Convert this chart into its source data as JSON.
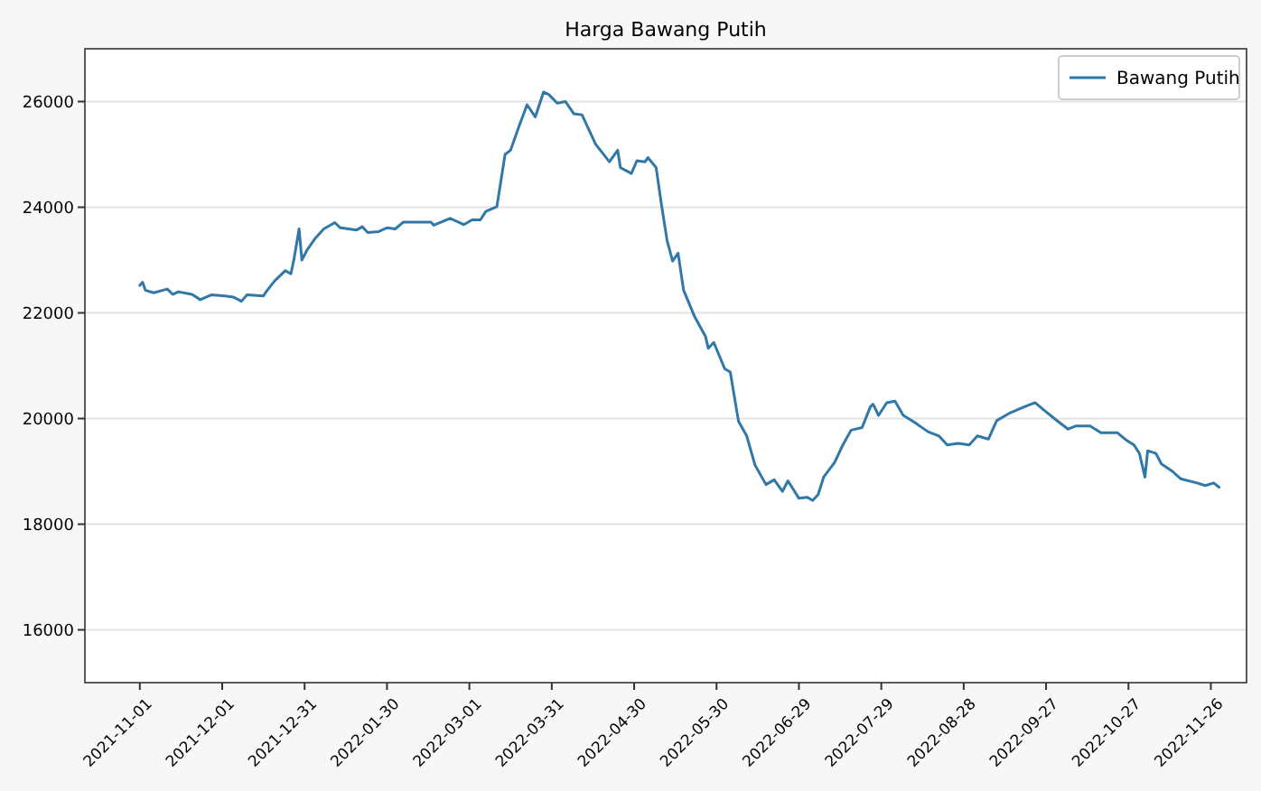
{
  "chart_data": {
    "type": "line",
    "title": "Harga Bawang Putih",
    "x": [
      "2021-11-01",
      "2021-11-02",
      "2021-11-03",
      "2021-11-06",
      "2021-11-11",
      "2021-11-13",
      "2021-11-15",
      "2021-11-20",
      "2021-11-23",
      "2021-11-27",
      "2021-12-02",
      "2021-12-05",
      "2021-12-08",
      "2021-12-10",
      "2021-12-16",
      "2021-12-17",
      "2021-12-20",
      "2021-12-24",
      "2021-12-26",
      "2021-12-27",
      "2021-12-29",
      "2021-12-30",
      "2022-01-01",
      "2022-01-04",
      "2022-01-07",
      "2022-01-11",
      "2022-01-13",
      "2022-01-19",
      "2022-01-21",
      "2022-01-23",
      "2022-01-27",
      "2022-01-30",
      "2022-02-02",
      "2022-02-05",
      "2022-02-11",
      "2022-02-15",
      "2022-02-16",
      "2022-02-22",
      "2022-02-27",
      "2022-03-02",
      "2022-03-05",
      "2022-03-07",
      "2022-03-11",
      "2022-03-14",
      "2022-03-16",
      "2022-03-19",
      "2022-03-22",
      "2022-03-25",
      "2022-03-28",
      "2022-03-30",
      "2022-04-02",
      "2022-04-05",
      "2022-04-08",
      "2022-04-11",
      "2022-04-16",
      "2022-04-21",
      "2022-04-24",
      "2022-04-25",
      "2022-04-29",
      "2022-05-01",
      "2022-05-04",
      "2022-05-05",
      "2022-05-08",
      "2022-05-10",
      "2022-05-12",
      "2022-05-14",
      "2022-05-16",
      "2022-05-18",
      "2022-05-22",
      "2022-05-26",
      "2022-05-27",
      "2022-05-29",
      "2022-06-02",
      "2022-06-04",
      "2022-06-07",
      "2022-06-10",
      "2022-06-13",
      "2022-06-17",
      "2022-06-20",
      "2022-06-23",
      "2022-06-25",
      "2022-06-29",
      "2022-07-02",
      "2022-07-04",
      "2022-07-06",
      "2022-07-08",
      "2022-07-12",
      "2022-07-15",
      "2022-07-18",
      "2022-07-22",
      "2022-07-25",
      "2022-07-26",
      "2022-07-28",
      "2022-07-31",
      "2022-08-03",
      "2022-08-06",
      "2022-08-10",
      "2022-08-15",
      "2022-08-19",
      "2022-08-22",
      "2022-08-26",
      "2022-08-30",
      "2022-09-02",
      "2022-09-06",
      "2022-09-09",
      "2022-09-14",
      "2022-09-19",
      "2022-09-23",
      "2022-09-26",
      "2022-09-30",
      "2022-10-05",
      "2022-10-08",
      "2022-10-13",
      "2022-10-17",
      "2022-10-23",
      "2022-10-26",
      "2022-10-29",
      "2022-10-31",
      "2022-11-02",
      "2022-11-03",
      "2022-11-06",
      "2022-11-08",
      "2022-11-12",
      "2022-11-15",
      "2022-11-21",
      "2022-11-24",
      "2022-11-27",
      "2022-11-29"
    ],
    "series": [
      {
        "name": "Bawang Putih",
        "color": "#2f78a8",
        "values": [
          22520,
          22580,
          22430,
          22380,
          22450,
          22350,
          22400,
          22350,
          22250,
          22340,
          22320,
          22300,
          22220,
          22340,
          22320,
          22400,
          22600,
          22800,
          22740,
          22980,
          23590,
          23000,
          23200,
          23420,
          23590,
          23710,
          23610,
          23570,
          23630,
          23520,
          23540,
          23610,
          23590,
          23720,
          23720,
          23720,
          23660,
          23790,
          23670,
          23760,
          23760,
          23920,
          24010,
          25000,
          25080,
          25520,
          25940,
          25710,
          26180,
          26130,
          25970,
          26000,
          25770,
          25750,
          25190,
          24860,
          25080,
          24750,
          24640,
          24880,
          24860,
          24940,
          24750,
          24030,
          23370,
          22980,
          23130,
          22430,
          21930,
          21550,
          21330,
          21440,
          20940,
          20880,
          19950,
          19670,
          19120,
          18750,
          18840,
          18620,
          18820,
          18490,
          18510,
          18450,
          18560,
          18890,
          19170,
          19500,
          19780,
          19830,
          20220,
          20270,
          20060,
          20300,
          20330,
          20060,
          19930,
          19750,
          19670,
          19500,
          19530,
          19500,
          19670,
          19610,
          19960,
          20110,
          20220,
          20300,
          20170,
          20000,
          19800,
          19860,
          19860,
          19730,
          19730,
          19600,
          19500,
          19340,
          18890,
          19390,
          19340,
          19140,
          19000,
          18860,
          18780,
          18730,
          18780,
          18700
        ]
      }
    ],
    "xlim": [
      "2021-10-12",
      "2022-12-09"
    ],
    "xticks": [
      "2021-11-01",
      "2021-12-01",
      "2021-12-31",
      "2022-01-30",
      "2022-03-01",
      "2022-03-31",
      "2022-04-30",
      "2022-05-30",
      "2022-06-29",
      "2022-07-29",
      "2022-08-28",
      "2022-09-27",
      "2022-10-27",
      "2022-11-26"
    ],
    "ylim": [
      15000,
      27000
    ],
    "yticks": [
      16000,
      18000,
      20000,
      22000,
      24000,
      26000
    ],
    "grid": "y",
    "legend": "top right",
    "line_style": "solid",
    "marker": "none"
  }
}
